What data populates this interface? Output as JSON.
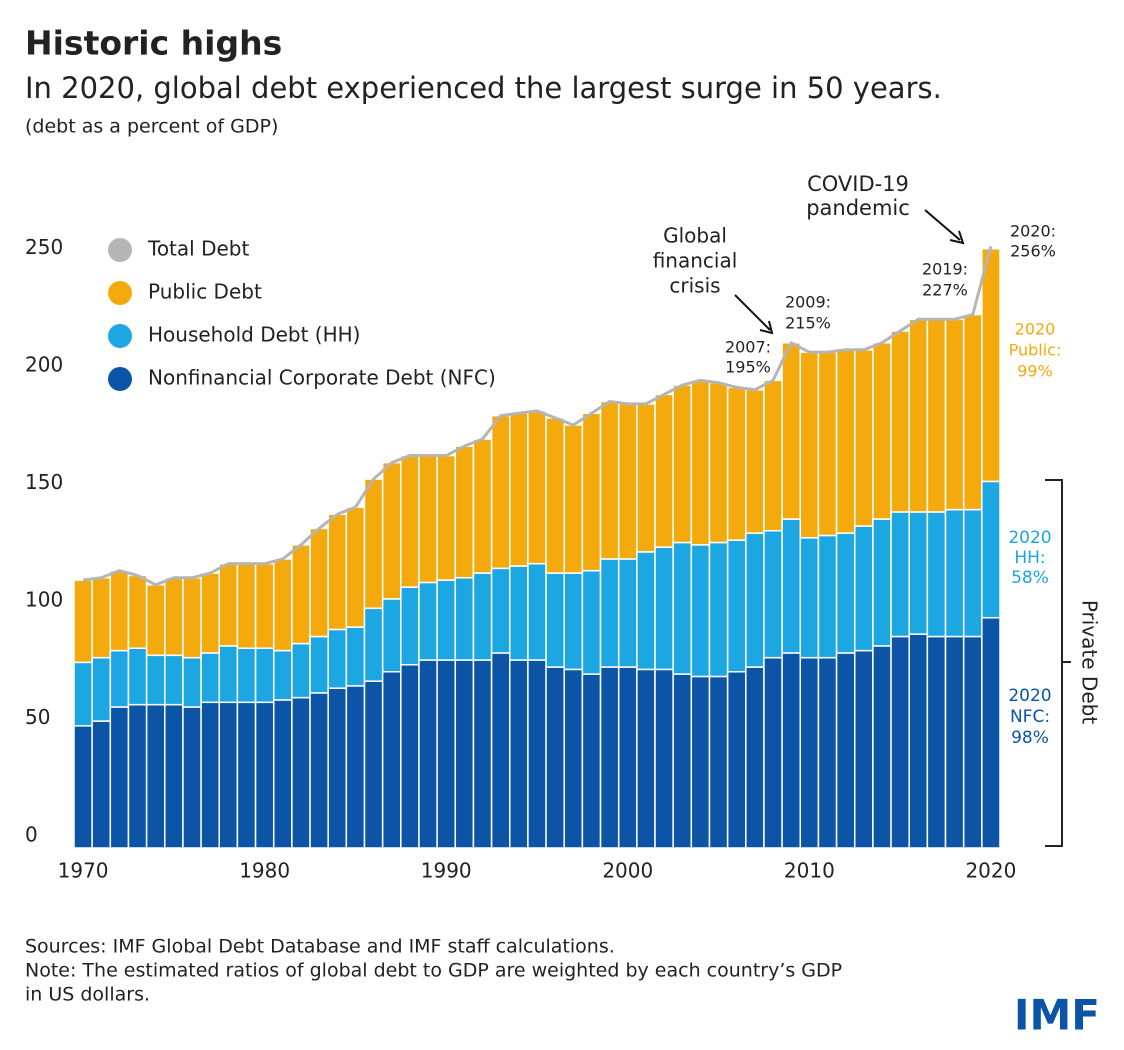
{
  "chart_data": {
    "type": "stacked_bar",
    "title": "Historic highs",
    "subtitle": "In 2020, global debt experienced the largest surge in 50 years.",
    "units_note": "(debt as a percent of GDP)",
    "x": [
      1970,
      1971,
      1972,
      1973,
      1974,
      1975,
      1976,
      1977,
      1978,
      1979,
      1980,
      1981,
      1982,
      1983,
      1984,
      1985,
      1986,
      1987,
      1988,
      1989,
      1990,
      1991,
      1992,
      1993,
      1994,
      1995,
      1996,
      1997,
      1998,
      1999,
      2000,
      2001,
      2002,
      2003,
      2004,
      2005,
      2006,
      2007,
      2008,
      2009,
      2010,
      2011,
      2012,
      2013,
      2014,
      2015,
      2016,
      2017,
      2018,
      2019,
      2020
    ],
    "series": [
      {
        "name": "Total Debt",
        "type": "line",
        "color": "#b5b5b5",
        "values": [
          114,
          115,
          118,
          116,
          112,
          115,
          115,
          117,
          121,
          121,
          121,
          123,
          129,
          136,
          142,
          145,
          157,
          164,
          167,
          167,
          167,
          171,
          174,
          184,
          185,
          186,
          183,
          180,
          185,
          190,
          189,
          189,
          193,
          197,
          199,
          198,
          196,
          195,
          199,
          215,
          211,
          211,
          212,
          212,
          215,
          220,
          225,
          225,
          225,
          227,
          256
        ]
      },
      {
        "name": "Public Debt",
        "color": "#f4aa0c",
        "values": [
          35,
          34,
          34,
          31,
          30,
          33,
          34,
          34,
          35,
          36,
          36,
          39,
          42,
          46,
          49,
          51,
          55,
          58,
          56,
          54,
          53,
          56,
          57,
          65,
          65,
          65,
          66,
          63,
          67,
          67,
          66,
          63,
          65,
          67,
          70,
          68,
          65,
          61,
          64,
          75,
          79,
          78,
          78,
          75,
          75,
          77,
          82,
          82,
          81,
          83,
          99
        ]
      },
      {
        "name": "Household Debt (HH)",
        "color": "#1ca6e2",
        "values": [
          27,
          27,
          24,
          24,
          21,
          21,
          21,
          21,
          24,
          23,
          23,
          21,
          23,
          24,
          25,
          25,
          31,
          31,
          33,
          33,
          34,
          35,
          37,
          36,
          40,
          41,
          40,
          41,
          44,
          46,
          46,
          50,
          52,
          56,
          56,
          57,
          56,
          57,
          54,
          57,
          51,
          52,
          51,
          53,
          54,
          53,
          52,
          53,
          54,
          54,
          58
        ]
      },
      {
        "name": "Nonfinancial Corporate Debt (NFC)",
        "color": "#0b54a6",
        "values": [
          52,
          54,
          60,
          61,
          61,
          61,
          60,
          62,
          62,
          62,
          62,
          63,
          64,
          66,
          68,
          69,
          71,
          75,
          78,
          80,
          80,
          80,
          80,
          83,
          80,
          80,
          77,
          76,
          74,
          77,
          77,
          76,
          76,
          74,
          73,
          73,
          75,
          77,
          81,
          83,
          81,
          81,
          83,
          84,
          86,
          90,
          91,
          90,
          90,
          90,
          98
        ]
      }
    ],
    "xlim": [
      1969.5,
      2020.5
    ],
    "xticks": [
      1970,
      1980,
      1990,
      2000,
      2010,
      2020
    ],
    "ylim": [
      0,
      260
    ],
    "yticks": [
      0,
      50,
      100,
      150,
      200,
      250
    ],
    "legend": "top-left",
    "annotations": [
      {
        "lines": [
          "Global",
          "financial",
          "crisis"
        ],
        "color": "#222222"
      },
      {
        "lines": [
          "COVID-19",
          "pandemic"
        ],
        "color": "#222222"
      },
      {
        "lines": [
          "2007:",
          "195%"
        ],
        "color": "#222222"
      },
      {
        "lines": [
          "2009:",
          "215%"
        ],
        "color": "#222222"
      },
      {
        "lines": [
          "2019:",
          "227%"
        ],
        "color": "#222222"
      },
      {
        "lines": [
          "2020:",
          "256%"
        ],
        "color": "#222222"
      },
      {
        "lines": [
          "2020",
          "Public:",
          "99%"
        ],
        "color": "#f4aa0c"
      },
      {
        "lines": [
          "2020",
          "HH:",
          "58%"
        ],
        "color": "#1ca6e2"
      },
      {
        "lines": [
          "2020",
          "NFC:",
          "98%"
        ],
        "color": "#0b54a6"
      }
    ],
    "bracket_label": "Private Debt",
    "notes": [
      "Sources: IMF Global Debt Database and IMF staff calculations.",
      "Note: The estimated ratios of global debt to GDP are weighted by each country’s GDP",
      "in US dollars."
    ],
    "logo": "IMF"
  }
}
